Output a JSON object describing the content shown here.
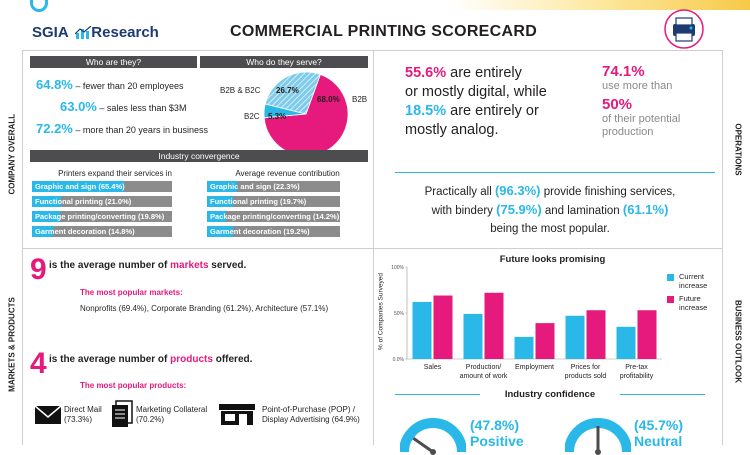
{
  "header": {
    "logo_text": "SGIA",
    "logo_research": "Research",
    "title": "COMMERCIAL PRINTING SCORECARD"
  },
  "side_labels": {
    "company": "COMPANY OVERALL",
    "markets": "MARKETS & PRODUCTS",
    "operations": "OPERATIONS",
    "business": "BUSINESS OUTLOOK"
  },
  "company": {
    "who_header": "Who are they?",
    "serve_header": "Who do they serve?",
    "stats": [
      {
        "num": "64.8%",
        "text": "– fewer than 20 employees"
      },
      {
        "num": "63.0%",
        "text": "– sales less than $3M"
      },
      {
        "num": "72.2%",
        "text": "– more than 20 years in business"
      }
    ],
    "pie": {
      "b2b_b2c_label": "B2B & B2C",
      "b2b_b2c_value": "26.7%",
      "b2b_label": "B2B",
      "b2b_value": "68.0%",
      "b2c_label": "B2C",
      "b2c_value": "5.3%",
      "slices": [
        {
          "name": "B2B",
          "value": 68.0,
          "color": "#e6197c"
        },
        {
          "name": "B2C",
          "value": 5.3,
          "color": "#29b8e8"
        },
        {
          "name": "B2B & B2C",
          "value": 26.7,
          "color": "#7ecbea"
        }
      ]
    },
    "convergence_header": "Industry convergence",
    "expand_header": "Printers expand their services in",
    "revenue_header": "Average revenue contribution",
    "expand_bars": [
      {
        "label": "Graphic and sign (65.4%)",
        "value": 65.4
      },
      {
        "label": "Functional printing (21.0%)",
        "value": 21.0
      },
      {
        "label": "Package printing/converting (19.8%)",
        "value": 19.8
      },
      {
        "label": "Garment decoration (14.8%)",
        "value": 14.8
      }
    ],
    "revenue_bars": [
      {
        "label": "Graphic and sign (22.3%)",
        "value": 22.3
      },
      {
        "label": "Functional printing (19.7%)",
        "value": 19.7
      },
      {
        "label": "Package printing/converting (14.2%)",
        "value": 14.2
      },
      {
        "label": "Garment decoration (19.2%)",
        "value": 19.2
      }
    ]
  },
  "operations": {
    "digital_num": "55.6%",
    "digital_text1": "are entirely",
    "digital_text2": "or mostly digital, while",
    "analog_num": "18.5%",
    "analog_text1": "are entirely or",
    "analog_text2": "mostly analog.",
    "use_num": "74.1%",
    "use_text": "use more than",
    "potential_num": "50%",
    "potential_text1": "of their potential",
    "potential_text2": "production",
    "finish_text1": "Practically all",
    "finish_num": "(96.3%)",
    "finish_text2": "provide finishing services,",
    "bindery_text": "with bindery",
    "bindery_num": "(75.9%)",
    "lamination_text": "and lamination",
    "lamination_num": "(61.1%)",
    "finish_text3": "being the most popular."
  },
  "markets": {
    "markets_num": "9",
    "markets_text1": "is the average number of",
    "markets_word": "markets",
    "markets_text2": "served.",
    "popular_markets_header": "The most popular markets:",
    "popular_markets": "Nonprofits (69.4%), Corporate Branding (61.2%), Architecture (57.1%)",
    "products_num": "4",
    "products_text1": "is the average number of",
    "products_word": "products",
    "products_text2": "offered.",
    "popular_products_header": "The most popular products:",
    "products": [
      {
        "icon": "envelope-icon",
        "line1": "Direct Mail",
        "line2": "(73.3%)"
      },
      {
        "icon": "brochure-icon",
        "line1": "Marketing Collateral",
        "line2": "(70.2%)"
      },
      {
        "icon": "storefront-icon",
        "line1": "Point-of-Purchase (POP) /",
        "line2": "Display Advertising (64.9%)"
      }
    ]
  },
  "outlook": {
    "confidence_header": "Industry confidence",
    "gauges": [
      {
        "value": "(47.8%)",
        "label": "Positive"
      },
      {
        "value": "(45.7%)",
        "label": "Neutral"
      }
    ]
  },
  "chart_data": {
    "type": "bar",
    "title": "Future looks promising",
    "ylabel": "% of Companies Surveyed",
    "ylim": [
      0,
      100
    ],
    "yticks": [
      "100%",
      "50%",
      "0.0%"
    ],
    "categories": [
      "Sales",
      "Production/ amount of work",
      "Employment",
      "Prices for products sold",
      "Pre-tax profitability"
    ],
    "category_lines": [
      [
        "Sales"
      ],
      [
        "Production/",
        "amount of work"
      ],
      [
        "Employment"
      ],
      [
        "Prices for",
        "products sold"
      ],
      [
        "Pre-tax",
        "profitability"
      ]
    ],
    "series": [
      {
        "name": "Current increase",
        "color": "#29b8e8",
        "values": [
          62,
          49,
          24,
          47,
          35
        ]
      },
      {
        "name": "Future increase",
        "color": "#e6197c",
        "values": [
          69,
          72,
          39,
          53,
          53
        ]
      }
    ],
    "legend": [
      [
        "Current",
        "increase"
      ],
      [
        "Future",
        "increase"
      ]
    ],
    "legend_position": "right"
  }
}
